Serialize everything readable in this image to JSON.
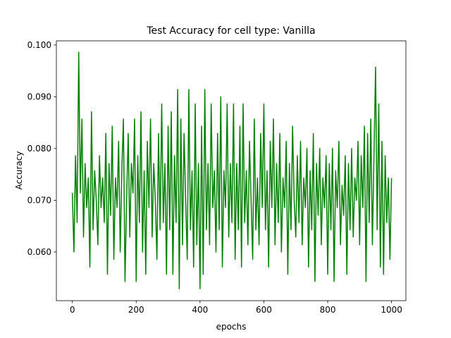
{
  "chart_data": {
    "type": "line",
    "title": "Test Accuracy for cell type: Vanilla",
    "xlabel": "epochs",
    "ylabel": "Accuracy",
    "x": [
      0,
      5,
      10,
      15,
      20,
      25,
      30,
      35,
      40,
      45,
      50,
      55,
      60,
      65,
      70,
      75,
      80,
      85,
      90,
      95,
      100,
      105,
      110,
      115,
      120,
      125,
      130,
      135,
      140,
      145,
      150,
      155,
      160,
      165,
      170,
      175,
      180,
      185,
      190,
      195,
      200,
      205,
      210,
      215,
      220,
      225,
      230,
      235,
      240,
      245,
      250,
      255,
      260,
      265,
      270,
      275,
      280,
      285,
      290,
      295,
      300,
      305,
      310,
      315,
      320,
      325,
      330,
      335,
      340,
      345,
      350,
      355,
      360,
      365,
      370,
      375,
      380,
      385,
      390,
      395,
      400,
      405,
      410,
      415,
      420,
      425,
      430,
      435,
      440,
      445,
      450,
      455,
      460,
      465,
      470,
      475,
      480,
      485,
      490,
      495,
      500,
      505,
      510,
      515,
      520,
      525,
      530,
      535,
      540,
      545,
      550,
      555,
      560,
      565,
      570,
      575,
      580,
      585,
      590,
      595,
      600,
      605,
      610,
      615,
      620,
      625,
      630,
      635,
      640,
      645,
      650,
      655,
      660,
      665,
      670,
      675,
      680,
      685,
      690,
      695,
      700,
      705,
      710,
      715,
      720,
      725,
      730,
      735,
      740,
      745,
      750,
      755,
      760,
      765,
      770,
      775,
      780,
      785,
      790,
      795,
      800,
      805,
      810,
      815,
      820,
      825,
      830,
      835,
      840,
      845,
      850,
      855,
      860,
      865,
      870,
      875,
      880,
      885,
      890,
      895,
      900,
      905,
      910,
      915,
      920,
      925,
      930,
      935,
      940,
      945,
      950,
      955,
      960,
      965,
      970,
      975,
      980,
      985,
      990,
      995,
      1000
    ],
    "series": [
      {
        "name": "Vanilla",
        "color": "#008000",
        "values": [
          0.0714,
          0.06,
          0.0786,
          0.0657,
          0.0986,
          0.0714,
          0.0857,
          0.0629,
          0.0771,
          0.0686,
          0.0743,
          0.0571,
          0.0871,
          0.0643,
          0.0757,
          0.07,
          0.0614,
          0.0786,
          0.0686,
          0.0743,
          0.0657,
          0.0829,
          0.0557,
          0.0771,
          0.0671,
          0.0843,
          0.0586,
          0.0743,
          0.0686,
          0.0814,
          0.06,
          0.0757,
          0.0857,
          0.0543,
          0.07,
          0.0829,
          0.0629,
          0.0771,
          0.0714,
          0.0857,
          0.0543,
          0.0786,
          0.0657,
          0.0871,
          0.06,
          0.0757,
          0.0557,
          0.0814,
          0.0686,
          0.0857,
          0.0629,
          0.0771,
          0.07,
          0.0586,
          0.0829,
          0.0643,
          0.0886,
          0.0657,
          0.0771,
          0.0557,
          0.0843,
          0.0643,
          0.0871,
          0.0557,
          0.0786,
          0.0657,
          0.0914,
          0.0529,
          0.0857,
          0.0614,
          0.0829,
          0.07,
          0.0586,
          0.0914,
          0.0643,
          0.0757,
          0.0571,
          0.0886,
          0.0614,
          0.0771,
          0.0529,
          0.0843,
          0.0557,
          0.0914,
          0.0643,
          0.0771,
          0.0614,
          0.0886,
          0.0686,
          0.0757,
          0.06,
          0.0829,
          0.0643,
          0.09,
          0.0571,
          0.0757,
          0.0686,
          0.0886,
          0.0629,
          0.0771,
          0.0657,
          0.0886,
          0.0586,
          0.0771,
          0.0643,
          0.0843,
          0.0571,
          0.0886,
          0.0657,
          0.0757,
          0.0614,
          0.0814,
          0.07,
          0.0586,
          0.0857,
          0.0643,
          0.0743,
          0.0614,
          0.0829,
          0.0686,
          0.0886,
          0.0643,
          0.0757,
          0.0571,
          0.0814,
          0.0686,
          0.0857,
          0.0614,
          0.0771,
          0.0657,
          0.0829,
          0.06,
          0.0743,
          0.0686,
          0.0814,
          0.0557,
          0.0771,
          0.0643,
          0.0843,
          0.07,
          0.0629,
          0.0786,
          0.0657,
          0.0814,
          0.0614,
          0.0743,
          0.0686,
          0.08,
          0.0571,
          0.0757,
          0.0643,
          0.0829,
          0.0543,
          0.0771,
          0.0671,
          0.08,
          0.0614,
          0.0743,
          0.0686,
          0.0786,
          0.0557,
          0.0771,
          0.0643,
          0.08,
          0.0543,
          0.0757,
          0.0686,
          0.0814,
          0.0614,
          0.0729,
          0.0671,
          0.0786,
          0.0557,
          0.0771,
          0.0643,
          0.08,
          0.0629,
          0.0743,
          0.07,
          0.0814,
          0.0614,
          0.0786,
          0.0686,
          0.0843,
          0.0543,
          0.0829,
          0.0657,
          0.0857,
          0.0614,
          0.0786,
          0.0957,
          0.0643,
          0.0886,
          0.0571,
          0.0814,
          0.0557,
          0.0786,
          0.0657,
          0.0743,
          0.0586,
          0.0743
        ]
      }
    ],
    "xlim": [
      -50,
      1045
    ],
    "ylim": [
      0.0506,
      0.1008
    ],
    "xticks": [
      0,
      200,
      400,
      600,
      800,
      1000
    ],
    "yticks": [
      {
        "value": 0.06,
        "label": "0.060"
      },
      {
        "value": 0.07,
        "label": "0.070"
      },
      {
        "value": 0.08,
        "label": "0.080"
      },
      {
        "value": 0.09,
        "label": "0.090"
      },
      {
        "value": 0.1,
        "label": "0.100"
      }
    ],
    "grid": false
  }
}
